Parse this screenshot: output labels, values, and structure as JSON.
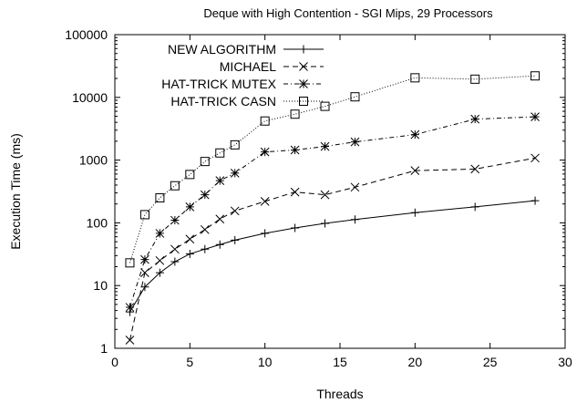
{
  "chart_data": {
    "type": "line",
    "title": "Deque with High Contention - SGI Mips, 29 Processors",
    "xlabel": "Threads",
    "ylabel": "Execution Time (ms)",
    "xlim": [
      0,
      30
    ],
    "ylim": [
      1,
      100000
    ],
    "yscale": "log",
    "grid": false,
    "legend_position": "top-left",
    "x_ticks": [
      0,
      5,
      10,
      15,
      20,
      25,
      30
    ],
    "x_tick_labels": [
      "0",
      "5",
      "10",
      "15",
      "20",
      "25",
      "30"
    ],
    "y_ticks": [
      1,
      10,
      100,
      1000,
      10000,
      100000
    ],
    "y_tick_labels": [
      "1",
      "10",
      "100",
      "1000",
      "10000",
      "100000"
    ],
    "series": [
      {
        "name": "NEW ALGORITHM",
        "marker": "plus",
        "line_style": "solid",
        "x": [
          1,
          2,
          3,
          4,
          5,
          6,
          7,
          8,
          10,
          12,
          14,
          16,
          20,
          24,
          28
        ],
        "y": [
          3.8,
          9.5,
          16,
          24,
          32,
          38,
          45,
          53,
          68,
          83,
          98,
          113,
          145,
          180,
          225
        ]
      },
      {
        "name": "MICHAEL",
        "marker": "x",
        "line_style": "dashed",
        "x": [
          1,
          2,
          3,
          4,
          5,
          6,
          7,
          8,
          10,
          12,
          14,
          16,
          20,
          24,
          28
        ],
        "y": [
          1.35,
          16,
          25,
          38,
          55,
          78,
          115,
          155,
          220,
          310,
          280,
          370,
          680,
          720,
          1080
        ]
      },
      {
        "name": "HAT-TRICK MUTEX",
        "marker": "asterisk",
        "line_style": "dash-dot",
        "x": [
          1,
          2,
          3,
          4,
          5,
          6,
          7,
          8,
          10,
          12,
          14,
          16,
          20,
          24,
          28
        ],
        "y": [
          4.5,
          26,
          68,
          110,
          180,
          280,
          470,
          620,
          1350,
          1450,
          1650,
          1950,
          2550,
          4500,
          4900
        ]
      },
      {
        "name": "HAT-TRICK CASN",
        "marker": "square",
        "line_style": "dotted",
        "x": [
          1,
          2,
          3,
          4,
          5,
          6,
          7,
          8,
          10,
          12,
          14,
          16,
          20,
          24,
          28
        ],
        "y": [
          23,
          135,
          250,
          390,
          590,
          950,
          1300,
          1750,
          4200,
          5400,
          7200,
          10200,
          20500,
          19500,
          22000
        ]
      }
    ]
  }
}
